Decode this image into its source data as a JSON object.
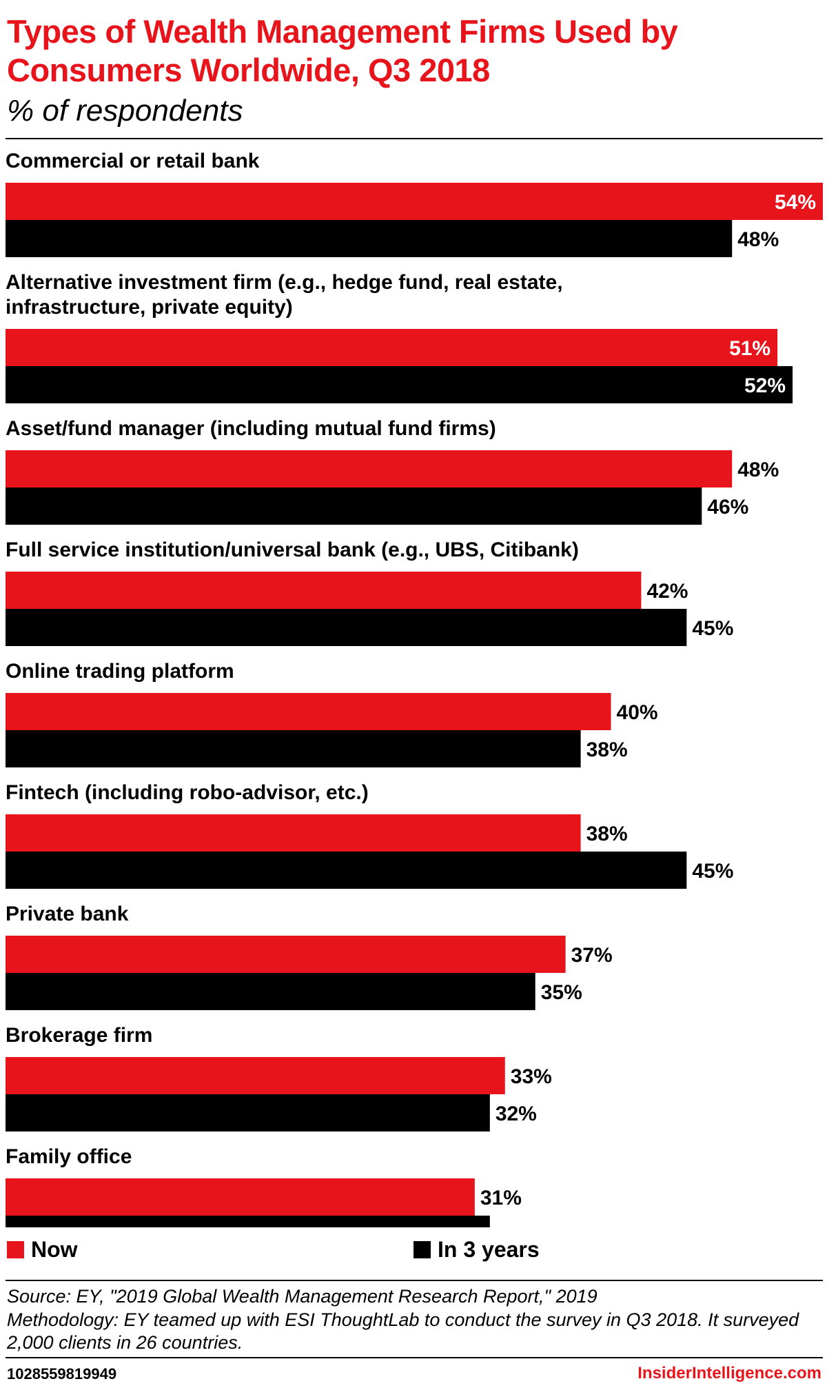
{
  "header": {
    "title": "Types of Wealth Management Firms Used by Consumers Worldwide, Q3 2018",
    "subtitle": "% of respondents"
  },
  "colors": {
    "now": "#e8141c",
    "in_3_years": "#000000",
    "brand": "#e8141c"
  },
  "chart_data": {
    "type": "bar",
    "orientation": "horizontal",
    "title": "Types of Wealth Management Firms Used by Consumers Worldwide, Q3 2018",
    "subtitle": "% of respondents",
    "categories": [
      "Commercial or retail bank",
      "Alternative investment firm (e.g., hedge fund, real estate, infrastructure, private equity)",
      "Asset/fund manager (including mutual fund firms)",
      "Full service institution/universal bank (e.g., UBS, Citibank)",
      "Online trading platform",
      "Fintech (including robo-advisor, etc.)",
      "Private bank",
      "Brokerage firm",
      "Family office"
    ],
    "series": [
      {
        "name": "Now",
        "values": [
          54,
          51,
          48,
          42,
          40,
          38,
          37,
          33,
          31
        ]
      },
      {
        "name": "In 3 years",
        "values": [
          48,
          52,
          46,
          45,
          38,
          45,
          35,
          32,
          32
        ]
      }
    ],
    "value_suffix": "%",
    "xlim": [
      0,
      54
    ],
    "grid": false,
    "legend_position": "bottom"
  },
  "legend": {
    "now_label": "Now",
    "in_3_years_label": "In 3 years"
  },
  "footer": {
    "source": "Source: EY, \"2019 Global Wealth Management Research Report,\" 2019",
    "methodology": "Methodology: EY teamed up with ESI ThoughtLab to conduct the survey in Q3 2018. It surveyed 2,000 clients in 26 countries.",
    "chart_id": "1028559819949",
    "brand": "InsiderIntelligence.com"
  }
}
